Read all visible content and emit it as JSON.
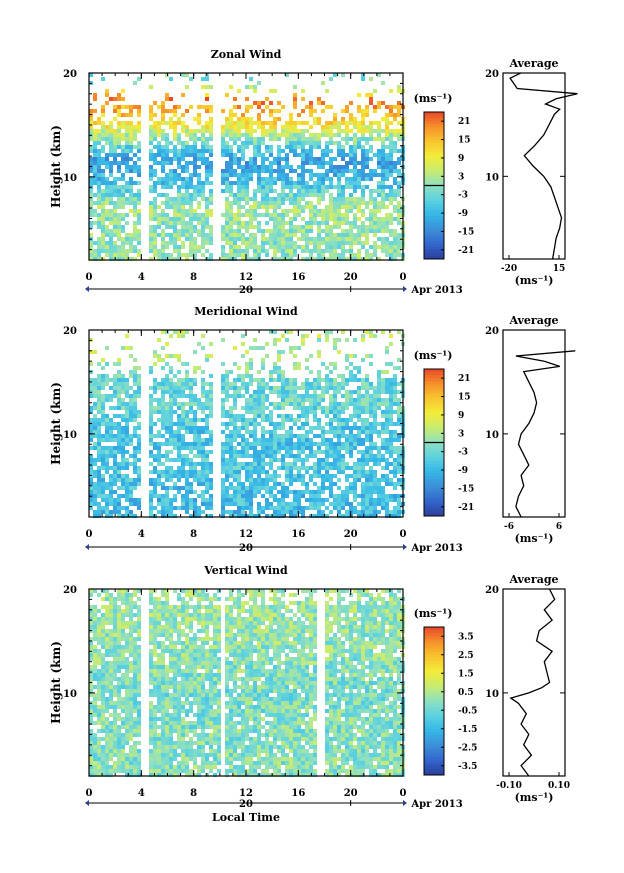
{
  "chart_data": [
    {
      "type": "heatmap",
      "title": "Zonal Wind",
      "ylabel": "Height (km)",
      "yticks": [
        "20",
        "10"
      ],
      "ylim": [
        2,
        20
      ],
      "xlim": [
        0,
        24
      ],
      "xticks": [
        "0",
        "4",
        "8",
        "12",
        "16",
        "20",
        "0"
      ],
      "date_label": "20",
      "month_label": "Apr 2013",
      "colorbar": {
        "unit": "(ms⁻¹)",
        "ticks": [
          "21",
          "15",
          "9",
          "3",
          "-3",
          "-9",
          "-15",
          "-21"
        ],
        "range": [
          -24,
          24
        ]
      },
      "profile": {
        "title": "Average",
        "xlabel": "(ms⁻¹)",
        "xticks": [
          "-20",
          "15"
        ],
        "xlim": [
          -20,
          15
        ],
        "yticks": [
          "20",
          "10"
        ],
        "height": [
          2,
          3,
          4,
          5,
          6,
          7,
          8,
          9,
          10,
          11,
          12,
          13,
          14,
          15,
          16,
          16.5,
          17,
          17.5,
          18,
          18.5,
          19,
          19.5,
          20
        ],
        "value": [
          8,
          9,
          10,
          12,
          13,
          11,
          9,
          7,
          3,
          -3,
          -8,
          -2,
          3,
          6,
          9,
          12,
          4,
          10,
          22,
          -12,
          -14,
          -16,
          -10
        ]
      },
      "pattern": [
        [
          5,
          0.3
        ],
        [
          7,
          2
        ],
        [
          10,
          -9
        ],
        [
          11.5,
          -12
        ],
        [
          13,
          -4
        ],
        [
          15,
          10
        ],
        [
          17.5,
          20
        ],
        [
          19,
          -2
        ]
      ]
    },
    {
      "type": "heatmap",
      "title": "Meridional Wind",
      "ylabel": "Height (km)",
      "yticks": [
        "20",
        "10"
      ],
      "ylim": [
        2,
        20
      ],
      "xlim": [
        0,
        24
      ],
      "xticks": [
        "0",
        "4",
        "8",
        "12",
        "16",
        "20",
        "0"
      ],
      "date_label": "20",
      "month_label": "Apr 2013",
      "colorbar": {
        "unit": "(ms⁻¹)",
        "ticks": [
          "21",
          "15",
          "9",
          "3",
          "-3",
          "-9",
          "-15",
          "-21"
        ],
        "range": [
          -24,
          24
        ]
      },
      "profile": {
        "title": "Average",
        "xlabel": "(ms⁻¹)",
        "xticks": [
          "-6",
          "6"
        ],
        "xlim": [
          -6,
          6
        ],
        "yticks": [
          "20",
          "10"
        ],
        "height": [
          2,
          3,
          4,
          5,
          6,
          7,
          8,
          9,
          10,
          11,
          12,
          13,
          14,
          15,
          15.5,
          16,
          16.5,
          17,
          17.5,
          18
        ],
        "value": [
          -2.5,
          -3.5,
          -3,
          -2,
          -2.5,
          -1,
          -2,
          -3,
          -2.5,
          -1,
          0,
          0.5,
          0,
          -1,
          -1.5,
          -2,
          5,
          2,
          -3.5,
          8
        ]
      },
      "pattern": [
        [
          5,
          -8
        ],
        [
          7,
          -6
        ],
        [
          10,
          -7
        ],
        [
          11.5,
          -5
        ],
        [
          13,
          -3
        ],
        [
          15,
          -4
        ],
        [
          17.5,
          3
        ]
      ]
    },
    {
      "type": "heatmap",
      "title": "Vertical Wind",
      "xlabel": "Local Time",
      "ylabel": "Height (km)",
      "yticks": [
        "20",
        "10"
      ],
      "ylim": [
        2,
        20
      ],
      "xlim": [
        0,
        24
      ],
      "xticks": [
        "0",
        "4",
        "8",
        "12",
        "16",
        "20",
        "0"
      ],
      "date_label": "20",
      "month_label": "Apr 2013",
      "colorbar": {
        "unit": "(ms⁻¹)",
        "ticks": [
          "3.5",
          "2.5",
          "1.5",
          "0.5",
          "-0.5",
          "-1.5",
          "-2.5",
          "-3.5"
        ],
        "range": [
          -4,
          4
        ]
      },
      "profile": {
        "title": "Average",
        "xlabel": "(ms⁻¹)",
        "xticks": [
          "-0.10",
          "0.10"
        ],
        "xlim": [
          -0.12,
          0.12
        ],
        "yticks": [
          "20",
          "10"
        ],
        "height": [
          2,
          3,
          4,
          5,
          6,
          7,
          8,
          9,
          9.5,
          10,
          10.5,
          11,
          12,
          13,
          14,
          15,
          16,
          17,
          18,
          19,
          20
        ],
        "value": [
          -0.02,
          -0.05,
          -0.01,
          -0.04,
          -0.02,
          -0.05,
          -0.03,
          -0.06,
          -0.09,
          -0.02,
          0.03,
          0.06,
          0.05,
          0.04,
          0.07,
          0.01,
          0.02,
          0.07,
          0.04,
          0.08,
          0.06
        ]
      },
      "pattern": [
        [
          5,
          -0.1
        ],
        [
          10,
          -0.3
        ],
        [
          15,
          0.1
        ],
        [
          19,
          0.2
        ]
      ]
    }
  ]
}
